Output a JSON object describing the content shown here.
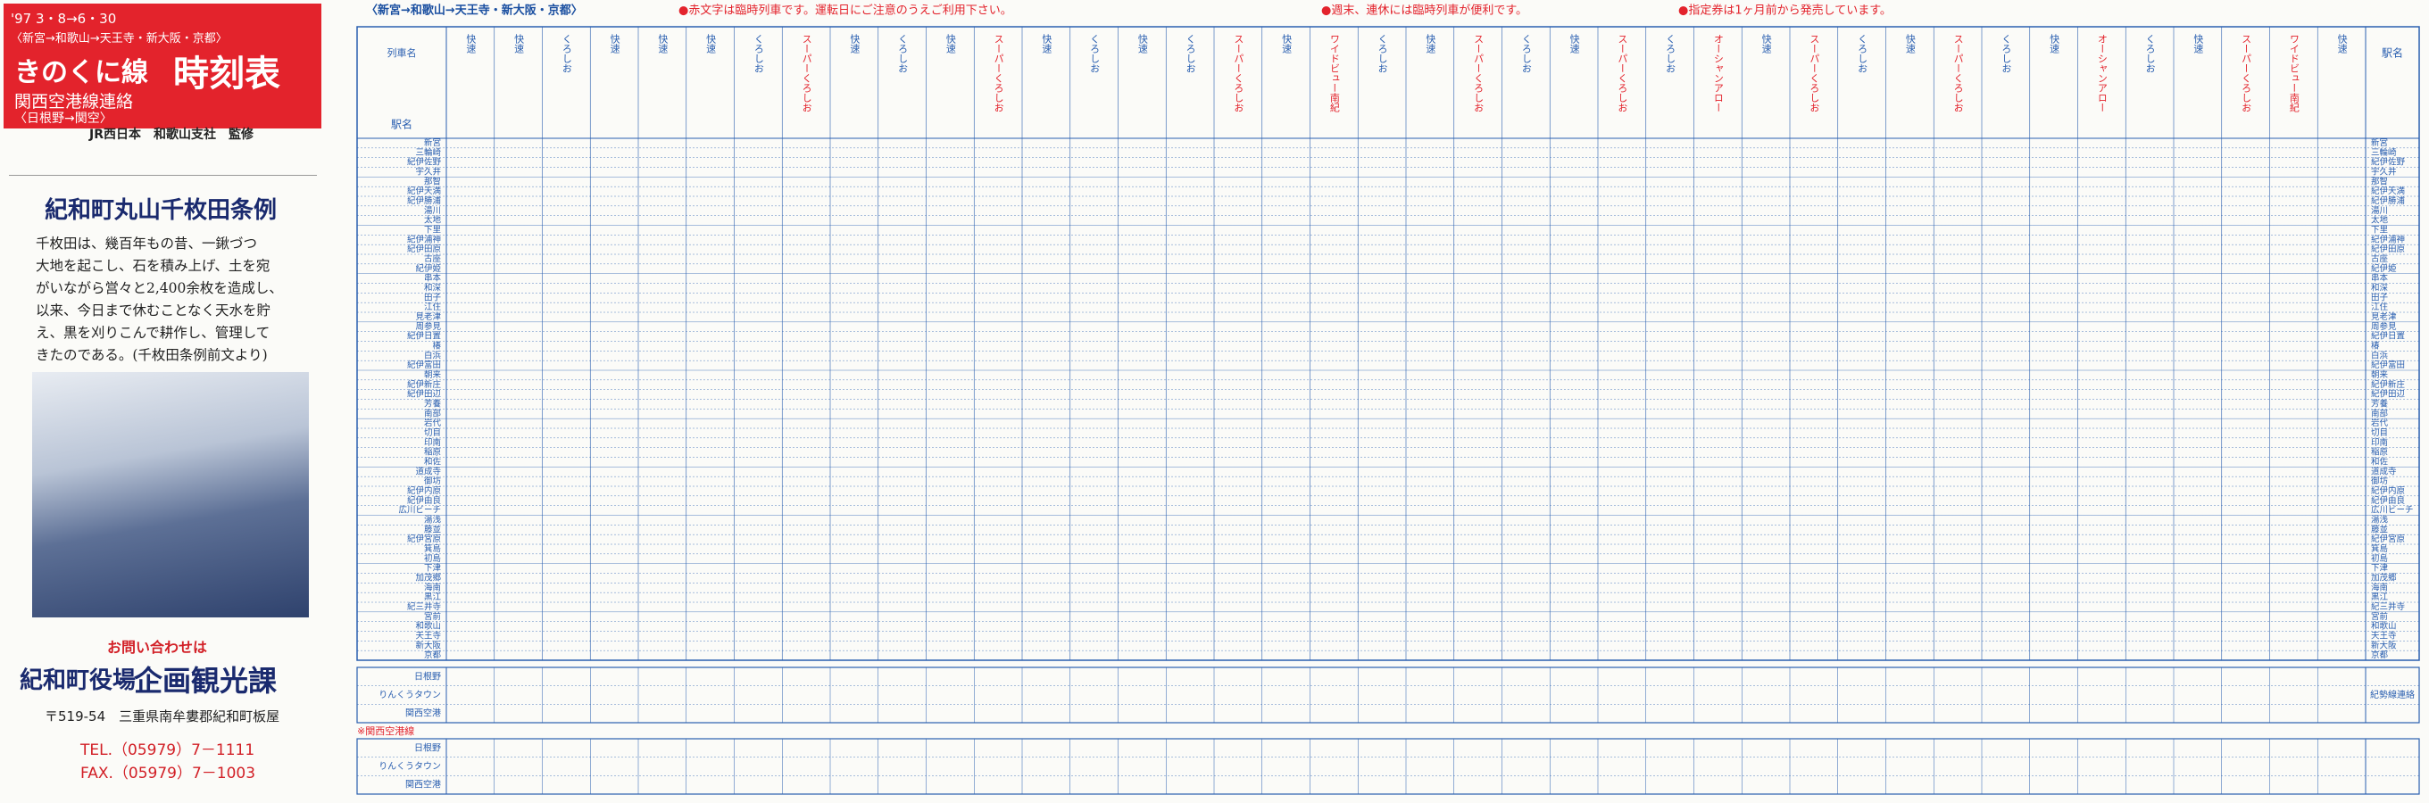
{
  "header": {
    "date": "'97 3・8→6・30",
    "route": "〈新宮→和歌山→天王寺・新大阪・京都〉",
    "line": "きのくに線",
    "title": "時刻表",
    "subtitle": "関西空港線連絡",
    "section": "〈日根野→関空〉",
    "supervisor": "JR西日本　和歌山支社　監修"
  },
  "ad": {
    "title": "紀和町丸山千枚田条例",
    "body": [
      "千枚田は、幾百年もの昔、一鍬づつ",
      "大地を起こし、石を積み上げ、土を宛",
      "がいながら営々と2,400余枚を造成し、",
      "以来、今日まで休むことなく天水を貯",
      "え、黒を刈りこんで耕作し、管理して",
      "きたのである。(千枚田条例前文より)"
    ],
    "inquiry": "お問い合わせは",
    "office": "紀和町役場",
    "department": "企画観光課",
    "address": "〒519-54　三重県南牟婁郡紀和町板屋",
    "tel": "TEL.（05979）7－1111",
    "fax": "FAX.（05979）7－1003"
  },
  "timetable": {
    "direction": "〈新宮→和歌山→天王寺・新大阪・京都〉",
    "notes": [
      "●赤文字は臨時列車です。運転日にご注意のうえご利用下さい。",
      "●週末、連休には臨時列車が便利です。",
      "●指定券は1ヶ月前から発売しています。"
    ],
    "train_label": "列車名",
    "station_label": "駅名",
    "trains": [
      "快速",
      "快速",
      "くろしお",
      "快速",
      "快速",
      "快速",
      "くろしお",
      "スーパーくろしお",
      "快速",
      "くろしお",
      "快速",
      "スーパーくろしお",
      "快速",
      "くろしお",
      "快速",
      "くろしお",
      "スーパーくろしお",
      "快速",
      "ワイドビュー南紀",
      "くろしお",
      "快速",
      "スーパーくろしお",
      "くろしお",
      "快速",
      "スーパーくろしお",
      "くろしお",
      "オーシャンアロー",
      "快速",
      "スーパーくろしお",
      "くろしお",
      "快速",
      "スーパーくろしお",
      "くろしお",
      "快速",
      "オーシャンアロー",
      "くろしお",
      "快速",
      "スーパーくろしお",
      "ワイドビュー南紀",
      "快速"
    ],
    "stations": [
      "新宮",
      "三輪崎",
      "紀伊佐野",
      "宇久井",
      "那智",
      "紀伊天満",
      "紀伊勝浦",
      "湯川",
      "太地",
      "下里",
      "紀伊浦神",
      "紀伊田原",
      "古座",
      "紀伊姫",
      "串本",
      "和深",
      "田子",
      "江住",
      "見老津",
      "周参見",
      "紀伊日置",
      "椿",
      "白浜",
      "紀伊富田",
      "朝来",
      "紀伊新庄",
      "紀伊田辺",
      "芳養",
      "南部",
      "岩代",
      "切目",
      "印南",
      "稲原",
      "和佐",
      "道成寺",
      "御坊",
      "紀伊内原",
      "紀伊由良",
      "広川ビーチ",
      "湯浅",
      "藤並",
      "紀伊宮原",
      "箕島",
      "初島",
      "下津",
      "加茂郷",
      "海南",
      "黒江",
      "紀三井寺",
      "宮前",
      "和歌山",
      "天王寺",
      "新大阪",
      "京都"
    ],
    "sections": [
      {
        "label": "紀勢線連絡",
        "stations": [
          "日根野",
          "りんくうタウン",
          "関西空港"
        ]
      },
      {
        "label": "※関西空港線",
        "stations": [
          "日根野",
          "りんくうタウン",
          "関西空港"
        ]
      }
    ]
  }
}
